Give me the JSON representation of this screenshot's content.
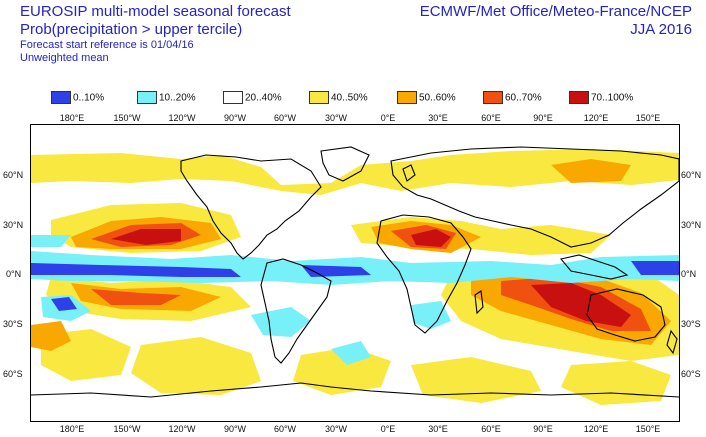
{
  "header": {
    "title_left": "EUROSIP multi-model seasonal forecast",
    "subtitle_left": "Prob(precipitation > upper tercile)",
    "start_ref": "Forecast start reference is 01/04/16",
    "weighting": "Unweighted mean",
    "title_right": "ECMWF/Met Office/Meteo-France/NCEP",
    "season": "JJA 2016"
  },
  "legend": [
    {
      "label": "0..10%",
      "color": "#3040e8"
    },
    {
      "label": "10..20%",
      "color": "#78f0f8"
    },
    {
      "label": "20..40%",
      "color": "#ffffff"
    },
    {
      "label": "40..50%",
      "color": "#f8e840"
    },
    {
      "label": "50..60%",
      "color": "#f8a800"
    },
    {
      "label": "60..70%",
      "color": "#f05010"
    },
    {
      "label": "70..100%",
      "color": "#c81010"
    }
  ],
  "axes": {
    "top_lon": [
      "180°E",
      "150°W",
      "120°W",
      "90°W",
      "60°W",
      "30°W",
      "0°E",
      "30°E",
      "60°E",
      "90°E",
      "120°E",
      "150°E"
    ],
    "bottom_lon": [
      "180°E",
      "150°W",
      "120°W",
      "90°W",
      "60°W",
      "30°W",
      "0°E",
      "30°E",
      "60°E",
      "90°E",
      "120°E",
      "150°E"
    ],
    "lat": [
      "60°N",
      "30°N",
      "0°N",
      "30°S",
      "60°S"
    ]
  }
}
